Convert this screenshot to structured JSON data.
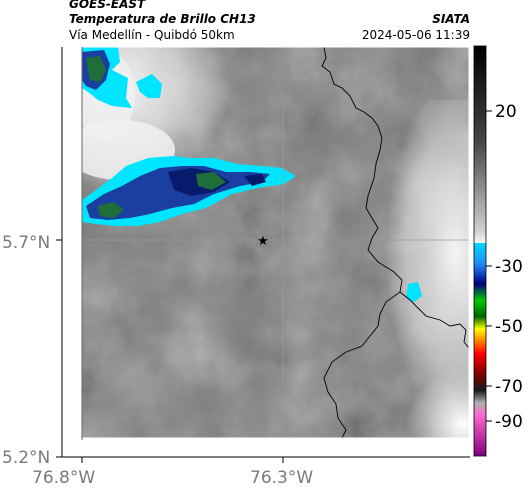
{
  "header": {
    "satellite": "GOES-EAST",
    "product": "Temperatura de Brillo CH13",
    "route": "Vía Medellín - Quibdó 50km",
    "brand": "SIATA",
    "datetime": "2024-05-06 11:39"
  },
  "axes": {
    "y_ticks": [
      "5.7°N",
      "5.2°N"
    ],
    "x_ticks": [
      "76.8°W",
      "76.3°W"
    ]
  },
  "colorbar": {
    "ticks": [
      "20",
      "-30",
      "-50",
      "-70",
      "-90"
    ],
    "colors": [
      "#ffffff",
      "#000000",
      "#00d8ff",
      "#1e90ff",
      "#00007f",
      "#00c800",
      "#ffff00",
      "#ff7f00",
      "#ff0000",
      "#7f0000",
      "#ff66cc",
      "#800080"
    ]
  },
  "markers": [
    {
      "name": "Quibdó marker",
      "symbol": "★"
    }
  ],
  "colors": {
    "cold_cyan": "#00e5ff",
    "cold_blue": "#1a3fa0",
    "cold_navy": "#071a6b",
    "cloud_green": "#1f6e3a"
  }
}
